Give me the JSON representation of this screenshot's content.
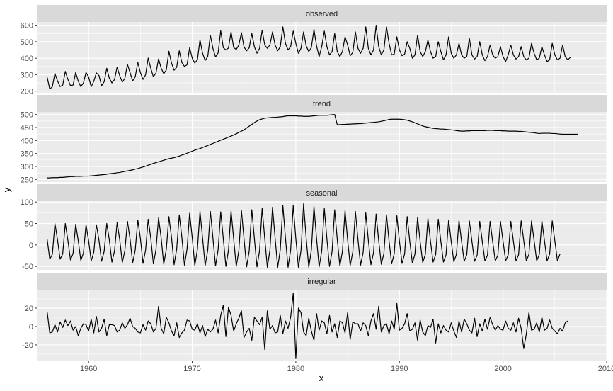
{
  "chart_data": {
    "type": "line",
    "title": "",
    "xlabel": "x",
    "ylabel": "y",
    "xlim": [
      1955,
      2010
    ],
    "x_ticks": [
      1960,
      1970,
      1980,
      1990,
      2000,
      2010
    ],
    "x_tick_labels": [
      "1960",
      "1970",
      "1980",
      "1990",
      "2000",
      "2010"
    ],
    "x_start": 1956,
    "frequency": 4,
    "grid": true,
    "legend": "none",
    "line_color": "#000000",
    "panel_background": "#ebebeb",
    "strip_background": "#d9d9d9",
    "gridline_color": "#ffffff",
    "panels": [
      {
        "name": "observed",
        "ylim": [
          190,
          620
        ],
        "y_ticks": [
          200,
          300,
          400,
          500,
          600
        ],
        "y_tick_labels": [
          "200",
          "300",
          "400",
          "500",
          "600"
        ],
        "values": [
          284,
          213,
          227,
          308,
          262,
          228,
          236,
          320,
          272,
          233,
          237,
          313,
          261,
          227,
          250,
          314,
          286,
          227,
          260,
          311,
          295,
          233,
          257,
          339,
          279,
          250,
          270,
          346,
          294,
          255,
          278,
          363,
          313,
          262,
          287,
          375,
          313,
          271,
          300,
          401,
          339,
          287,
          310,
          396,
          340,
          306,
          329,
          442,
          371,
          327,
          345,
          445,
          374,
          350,
          360,
          463,
          400,
          371,
          390,
          511,
          430,
          386,
          410,
          540,
          459,
          408,
          432,
          567,
          464,
          450,
          462,
          560,
          465,
          453,
          480,
          555,
          468,
          445,
          463,
          550,
          470,
          430,
          460,
          570,
          480,
          460,
          480,
          560,
          480,
          445,
          470,
          590,
          490,
          450,
          470,
          565,
          490,
          430,
          460,
          560,
          475,
          440,
          465,
          575,
          475,
          410,
          470,
          565,
          470,
          420,
          440,
          550,
          440,
          410,
          440,
          530,
          480,
          415,
          435,
          560,
          460,
          430,
          460,
          590,
          460,
          420,
          450,
          600,
          470,
          420,
          450,
          590,
          490,
          420,
          425,
          530,
          450,
          415,
          425,
          500,
          460,
          400,
          420,
          540,
          440,
          410,
          440,
          510,
          440,
          400,
          410,
          500,
          440,
          390,
          420,
          530,
          430,
          400,
          420,
          490,
          420,
          400,
          410,
          520,
          420,
          395,
          410,
          500,
          420,
          385,
          410,
          480,
          420,
          400,
          410,
          470,
          410,
          380,
          420,
          480,
          420,
          395,
          410,
          470,
          410,
          390,
          400,
          490,
          430,
          390,
          400,
          470,
          420,
          380,
          390,
          490,
          420,
          390,
          400,
          480,
          410,
          390,
          405
        ]
      },
      {
        "name": "trend",
        "ylim": [
          240,
          510
        ],
        "y_ticks": [
          250,
          300,
          350,
          400,
          450,
          500
        ],
        "y_tick_labels": [
          "250",
          "300",
          "350",
          "400",
          "450",
          "500"
        ],
        "values": [
          256,
          256,
          257,
          257,
          257,
          258,
          258,
          259,
          260,
          261,
          261,
          262,
          262,
          262,
          263,
          263,
          263,
          264,
          265,
          266,
          267,
          268,
          269,
          270,
          272,
          273,
          274,
          276,
          277,
          279,
          281,
          283,
          285,
          287,
          290,
          292,
          295,
          298,
          301,
          305,
          308,
          312,
          315,
          318,
          321,
          324,
          327,
          330,
          332,
          334,
          337,
          340,
          344,
          347,
          351,
          355,
          359,
          363,
          366,
          369,
          373,
          377,
          381,
          385,
          389,
          393,
          397,
          401,
          405,
          409,
          413,
          417,
          421,
          426,
          431,
          436,
          441,
          448,
          455,
          462,
          469,
          475,
          480,
          483,
          486,
          487,
          488,
          489,
          489,
          490,
          491,
          492,
          494,
          495,
          495,
          495,
          495,
          494,
          494,
          493,
          493,
          493,
          494,
          495,
          496,
          497,
          497,
          497,
          497,
          498,
          499,
          500,
          461,
          461,
          462,
          462,
          463,
          463,
          464,
          464,
          465,
          465,
          466,
          467,
          468,
          469,
          470,
          471,
          472,
          474,
          476,
          478,
          481,
          482,
          482,
          482,
          482,
          481,
          480,
          478,
          475,
          472,
          468,
          464,
          460,
          456,
          453,
          451,
          449,
          447,
          446,
          445,
          444,
          444,
          443,
          442,
          441,
          440,
          438,
          437,
          436,
          436,
          437,
          437,
          438,
          438,
          438,
          438,
          438,
          438,
          439,
          439,
          439,
          438,
          438,
          438,
          437,
          437,
          436,
          436,
          436,
          436,
          435,
          435,
          434,
          433,
          432,
          431,
          430,
          428,
          427,
          428,
          428,
          428,
          428,
          427,
          427,
          426,
          425,
          424,
          424,
          424,
          424,
          424,
          424,
          424
        ]
      },
      {
        "name": "seasonal",
        "ylim": [
          -58,
          102
        ],
        "y_ticks": [
          -50,
          0,
          50,
          100
        ],
        "y_tick_labels": [
          "-50",
          "0",
          "50",
          "100"
        ],
        "values": [
          13,
          -33,
          -22,
          50,
          12,
          -33,
          -21,
          50,
          11,
          -35,
          -20,
          48,
          10,
          -36,
          -19,
          47,
          10,
          -37,
          -17,
          47,
          11,
          -38,
          -15,
          50,
          12,
          -40,
          -14,
          52,
          13,
          -41,
          -13,
          55,
          14,
          -42,
          -12,
          58,
          15,
          -43,
          -12,
          60,
          16,
          -44,
          -11,
          63,
          17,
          -45,
          -10,
          66,
          18,
          -46,
          -10,
          70,
          18,
          -47,
          -10,
          74,
          17,
          -48,
          -11,
          78,
          16,
          -48,
          -12,
          78,
          16,
          -49,
          -11,
          77,
          15,
          -50,
          -12,
          79,
          14,
          -50,
          -13,
          80,
          14,
          -51,
          -14,
          82,
          15,
          -51,
          -13,
          85,
          15,
          -52,
          -12,
          88,
          16,
          -52,
          -11,
          92,
          16,
          -52,
          -12,
          92,
          15,
          -52,
          -13,
          96,
          16,
          -52,
          -12,
          90,
          15,
          -51,
          -14,
          85,
          14,
          -50,
          -15,
          82,
          13,
          -49,
          -15,
          80,
          12,
          -48,
          -16,
          78,
          12,
          -47,
          -17,
          75,
          11,
          -46,
          -18,
          72,
          10,
          -45,
          -20,
          70,
          9,
          -44,
          -20,
          68,
          9,
          -43,
          -21,
          66,
          8,
          -42,
          -21,
          64,
          8,
          -41,
          -22,
          62,
          8,
          -40,
          -22,
          60,
          8,
          -40,
          -23,
          58,
          8,
          -39,
          -22,
          57,
          8,
          -38,
          -23,
          56,
          8,
          -38,
          -24,
          55,
          8,
          -37,
          -24,
          55,
          8,
          -37,
          -24,
          55,
          9,
          -37,
          -23,
          55,
          9,
          -37,
          -23,
          56,
          10,
          -37,
          -22,
          56,
          10,
          -37,
          -22,
          56,
          10,
          -37,
          -21,
          56,
          10,
          -37,
          -21
        ]
      },
      {
        "name": "irregular",
        "ylim": [
          -37,
          40
        ],
        "y_ticks": [
          -20,
          0,
          20
        ],
        "y_tick_labels": [
          "-20",
          "0",
          "20"
        ],
        "values": [
          16,
          -7,
          -6,
          2,
          -6,
          5,
          -1,
          7,
          1,
          6,
          -4,
          0,
          -10,
          -2,
          3,
          2,
          -5,
          8,
          -7,
          11,
          -6,
          -2,
          8,
          -10,
          2,
          2,
          1,
          -6,
          -4,
          4,
          -2,
          2,
          9,
          0,
          -2,
          -6,
          -7,
          2,
          -4,
          6,
          3,
          -6,
          -2,
          22,
          -2,
          -8,
          10,
          4,
          -5,
          -10,
          4,
          -12,
          -7,
          -4,
          7,
          6,
          -3,
          -4,
          3,
          -7,
          1,
          -11,
          -3,
          -6,
          -3,
          7,
          -7,
          12,
          23,
          -11,
          21,
          12,
          -5,
          3,
          9,
          17,
          -12,
          -6,
          -2,
          -15,
          10,
          6,
          2,
          10,
          -25,
          17,
          -3,
          1,
          -7,
          -6,
          12,
          -8,
          6,
          -2,
          10,
          36,
          -35,
          20,
          15,
          -6,
          -10,
          9,
          -5,
          -15,
          14,
          -4,
          6,
          4,
          -8,
          12,
          -6,
          3,
          -12,
          6,
          4,
          -7,
          15,
          -14,
          5,
          3,
          3,
          -5,
          4,
          1,
          -10,
          6,
          14,
          -3,
          22,
          -6,
          1,
          3,
          -8,
          6,
          -3,
          25,
          -4,
          -2,
          3,
          14,
          -5,
          -3,
          4,
          -15,
          7,
          -6,
          -10,
          1,
          -1,
          8,
          -18,
          3,
          -7,
          1,
          -4,
          -6,
          4,
          -5,
          -12,
          6,
          -6,
          8,
          3,
          -4,
          -7,
          9,
          -11,
          3,
          -5,
          8,
          -3,
          10,
          2,
          -4,
          1,
          -3,
          -4,
          6,
          -2,
          -4,
          4,
          -6,
          9,
          -2,
          -24,
          -8,
          15,
          -4,
          -3,
          4,
          -6,
          10,
          -4,
          -2,
          7,
          -2,
          -5,
          -8,
          -2,
          -5,
          4,
          6
        ]
      }
    ]
  }
}
